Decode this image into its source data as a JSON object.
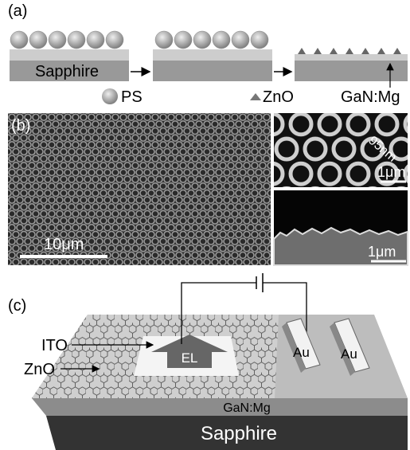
{
  "panel_a": {
    "label": "(a)",
    "substrate": "Sapphire",
    "legend": [
      "PS",
      "ZnO",
      "GaN:Mg"
    ]
  },
  "panel_b": {
    "label": "(b)",
    "main_scale": "10μm",
    "inset_top": {
      "dimension": "95nm",
      "scale": "1μm"
    },
    "inset_bottom": {
      "scale": "1μm"
    }
  },
  "panel_c": {
    "label": "(c)",
    "callouts": [
      "ITO",
      "ZnO"
    ],
    "emission": "EL",
    "electrodes": [
      "Au",
      "Au"
    ],
    "layers": [
      "GaN:Mg",
      "Sapphire"
    ]
  }
}
